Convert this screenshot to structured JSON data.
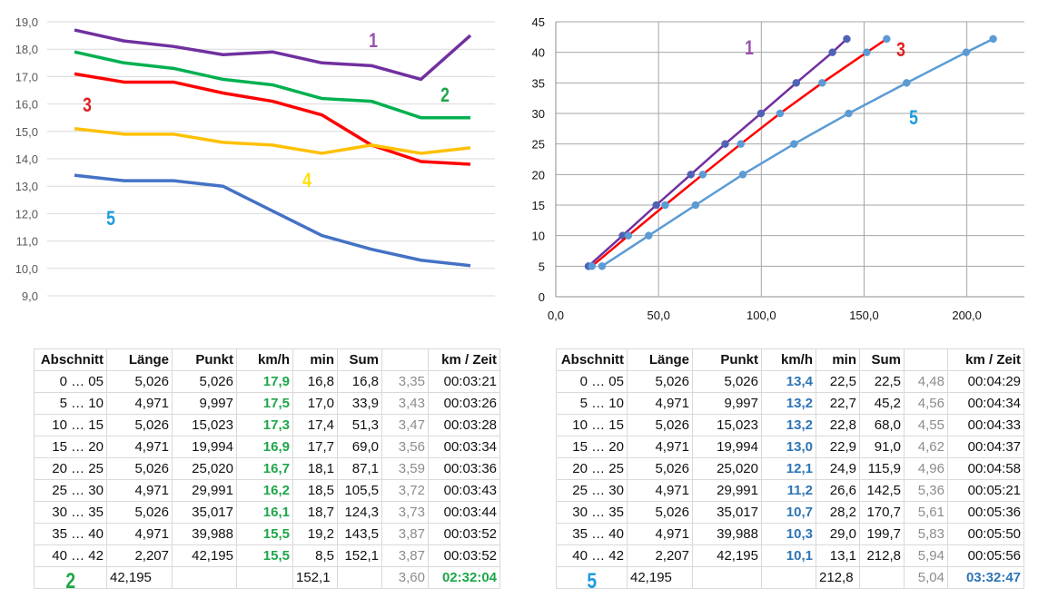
{
  "chart_data": [
    {
      "type": "line",
      "xlabel": "",
      "ylabel": "",
      "ylim": [
        9,
        19
      ],
      "yticks": [
        "9,0",
        "10,0",
        "11,0",
        "12,0",
        "13,0",
        "14,0",
        "15,0",
        "16,0",
        "17,0",
        "18,0",
        "19,0"
      ],
      "grid": true,
      "series": [
        {
          "name": "1",
          "color": "#7030a0",
          "label_color": "#9b4fb0",
          "values": [
            18.7,
            18.3,
            18.1,
            17.8,
            17.9,
            17.5,
            17.4,
            16.9,
            18.5
          ]
        },
        {
          "name": "2",
          "color": "#00b050",
          "label_color": "#1fa64a",
          "values": [
            17.9,
            17.5,
            17.3,
            16.9,
            16.7,
            16.2,
            16.1,
            15.5,
            15.5
          ]
        },
        {
          "name": "3",
          "color": "#ff0000",
          "label_color": "#e02020",
          "values": [
            17.1,
            16.8,
            16.8,
            16.4,
            16.1,
            15.6,
            14.5,
            13.9,
            13.8
          ]
        },
        {
          "name": "4",
          "color": "#ffc000",
          "label_color": "#ffe000",
          "values": [
            15.1,
            14.9,
            14.9,
            14.6,
            14.5,
            14.2,
            14.5,
            14.2,
            14.4
          ]
        },
        {
          "name": "5",
          "color": "#4472c4",
          "label_color": "#1a9be0",
          "values": [
            13.4,
            13.2,
            13.2,
            13.0,
            12.1,
            11.2,
            10.7,
            10.3,
            10.1
          ]
        }
      ]
    },
    {
      "type": "scatter",
      "xlabel": "",
      "ylabel": "",
      "xlim": [
        0,
        228
      ],
      "ylim": [
        0,
        45
      ],
      "xticks": [
        "0,0",
        "50,0",
        "100,0",
        "150,0",
        "200,0"
      ],
      "yticks": [
        "0",
        "5",
        "10",
        "15",
        "20",
        "25",
        "30",
        "35",
        "40",
        "45"
      ],
      "grid": true,
      "series": [
        {
          "name": "1",
          "color": "#7030a0",
          "marker": "#4f62b5",
          "label_color": "#9b4fb0",
          "x": [
            15.9,
            32.5,
            48.9,
            65.7,
            82.4,
            99.8,
            117.0,
            134.6,
            141.6
          ],
          "y": [
            5,
            10,
            15,
            20,
            25,
            30,
            35,
            40,
            42.195
          ]
        },
        {
          "name": "3",
          "color": "#ff0000",
          "marker": "#5b9bd5",
          "label_color": "#e02020",
          "x": [
            17.6,
            35.3,
            53.2,
            71.5,
            90.0,
            109.1,
            129.6,
            151.3,
            161.0
          ],
          "y": [
            5,
            10,
            15,
            20,
            25,
            30,
            35,
            40,
            42.195
          ]
        },
        {
          "name": "5",
          "color": "#5b9bd5",
          "marker": "#5b9bd5",
          "label_color": "#1a9be0",
          "x": [
            22.5,
            45.2,
            68.0,
            91.0,
            115.9,
            142.5,
            170.7,
            199.7,
            212.8
          ],
          "y": [
            5,
            10,
            15,
            20,
            25,
            30,
            35,
            40,
            42.195
          ]
        }
      ]
    }
  ],
  "tables": [
    {
      "accent": "#1fa64a",
      "label": "2",
      "headers": [
        "Abschnitt",
        "Länge",
        "Punkt",
        "km/h",
        "min",
        "Sum",
        "",
        "km / Zeit"
      ],
      "rows": [
        [
          "0 … 05",
          "5,026",
          "5,026",
          "17,9",
          "16,8",
          "16,8",
          "3,35",
          "00:03:21"
        ],
        [
          "5 … 10",
          "4,971",
          "9,997",
          "17,5",
          "17,0",
          "33,9",
          "3,43",
          "00:03:26"
        ],
        [
          "10 … 15",
          "5,026",
          "15,023",
          "17,3",
          "17,4",
          "51,3",
          "3,47",
          "00:03:28"
        ],
        [
          "15 … 20",
          "4,971",
          "19,994",
          "16,9",
          "17,7",
          "69,0",
          "3,56",
          "00:03:34"
        ],
        [
          "20 … 25",
          "5,026",
          "25,020",
          "16,7",
          "18,1",
          "87,1",
          "3,59",
          "00:03:36"
        ],
        [
          "25 … 30",
          "4,971",
          "29,991",
          "16,2",
          "18,5",
          "105,5",
          "3,72",
          "00:03:43"
        ],
        [
          "30 … 35",
          "5,026",
          "35,017",
          "16,1",
          "18,7",
          "124,3",
          "3,73",
          "00:03:44"
        ],
        [
          "35 … 40",
          "4,971",
          "39,988",
          "15,5",
          "19,2",
          "143,5",
          "3,87",
          "00:03:52"
        ],
        [
          "40 … 42",
          "2,207",
          "42,195",
          "15,5",
          "8,5",
          "152,1",
          "3,87",
          "00:03:52"
        ]
      ],
      "total": {
        "length": "42,195",
        "min": "152,1",
        "avg": "3,60",
        "time": "02:32:04"
      }
    },
    {
      "accent": "#2e75b6",
      "label": "5",
      "label_color": "#1a9be0",
      "headers": [
        "Abschnitt",
        "Länge",
        "Punkt",
        "km/h",
        "min",
        "Sum",
        "",
        "km / Zeit"
      ],
      "rows": [
        [
          "0 … 05",
          "5,026",
          "5,026",
          "13,4",
          "22,5",
          "22,5",
          "4,48",
          "00:04:29"
        ],
        [
          "5 … 10",
          "4,971",
          "9,997",
          "13,2",
          "22,7",
          "45,2",
          "4,56",
          "00:04:34"
        ],
        [
          "10 … 15",
          "5,026",
          "15,023",
          "13,2",
          "22,8",
          "68,0",
          "4,55",
          "00:04:33"
        ],
        [
          "15 … 20",
          "4,971",
          "19,994",
          "13,0",
          "22,9",
          "91,0",
          "4,62",
          "00:04:37"
        ],
        [
          "20 … 25",
          "5,026",
          "25,020",
          "12,1",
          "24,9",
          "115,9",
          "4,96",
          "00:04:58"
        ],
        [
          "25 … 30",
          "4,971",
          "29,991",
          "11,2",
          "26,6",
          "142,5",
          "5,36",
          "00:05:21"
        ],
        [
          "30 … 35",
          "5,026",
          "35,017",
          "10,7",
          "28,2",
          "170,7",
          "5,61",
          "00:05:36"
        ],
        [
          "35 … 40",
          "4,971",
          "39,988",
          "10,3",
          "29,0",
          "199,7",
          "5,83",
          "00:05:50"
        ],
        [
          "40 … 42",
          "2,207",
          "42,195",
          "10,1",
          "13,1",
          "212,8",
          "5,94",
          "00:05:56"
        ]
      ],
      "total": {
        "length": "42,195",
        "min": "212,8",
        "avg": "5,04",
        "time": "03:32:47"
      }
    }
  ]
}
